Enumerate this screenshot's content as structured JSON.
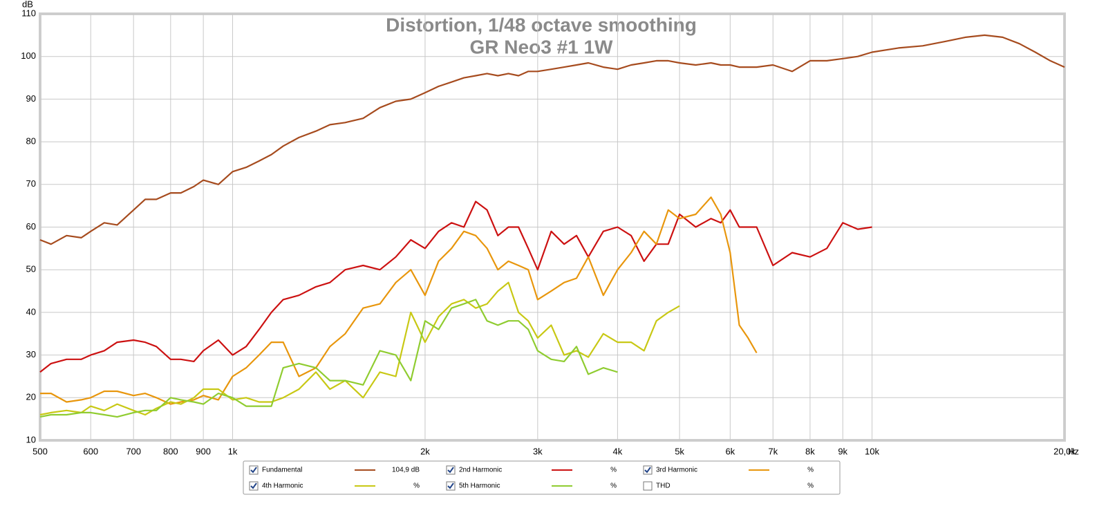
{
  "chart_data": {
    "type": "line",
    "title": "Distortion, 1/48 octave smoothing",
    "subtitle": "GR Neo3 #1 1W",
    "xlabel": "Hz",
    "ylabel": "dB",
    "log_x": true,
    "grid": true,
    "xlim": [
      500,
      20000
    ],
    "ylim": [
      10,
      110
    ],
    "xticks": [
      500,
      600,
      700,
      800,
      900,
      {
        "value": 1000,
        "label": "1k"
      },
      {
        "value": 2000,
        "label": "2k"
      },
      {
        "value": 3000,
        "label": "3k"
      },
      {
        "value": 4000,
        "label": "4k"
      },
      {
        "value": 5000,
        "label": "5k"
      },
      {
        "value": 6000,
        "label": "6k"
      },
      {
        "value": 7000,
        "label": "7k"
      },
      {
        "value": 8000,
        "label": "8k"
      },
      {
        "value": 9000,
        "label": "9k"
      },
      {
        "value": 10000,
        "label": "10k"
      },
      {
        "value": 20000,
        "label": "20,0k"
      }
    ],
    "yticks": [
      10,
      20,
      30,
      40,
      50,
      60,
      70,
      80,
      90,
      100,
      110
    ],
    "x": [
      500,
      520,
      550,
      580,
      600,
      630,
      660,
      700,
      730,
      760,
      800,
      830,
      870,
      900,
      950,
      1000,
      1050,
      1100,
      1150,
      1200,
      1270,
      1350,
      1420,
      1500,
      1600,
      1700,
      1800,
      1900,
      2000,
      2100,
      2200,
      2300,
      2400,
      2500,
      2600,
      2700,
      2800,
      2900,
      3000,
      3150,
      3300,
      3450,
      3600,
      3800,
      4000,
      4200,
      4400,
      4600,
      4800,
      5000,
      5300,
      5600,
      5800,
      6000,
      6200,
      6400,
      6600,
      7000,
      7500,
      8000,
      8500,
      9000,
      9500,
      10000,
      11000,
      12000,
      13000,
      14000,
      15000,
      16000,
      17000,
      18000,
      19000,
      20000
    ],
    "series": [
      {
        "name": "Fundamental",
        "color": "#a64b1e",
        "checked": true,
        "legend_value": "104,9 dB",
        "values": [
          57,
          56,
          58,
          57.5,
          59,
          61,
          60.5,
          64,
          66.5,
          66.5,
          68,
          68,
          69.5,
          71,
          70,
          73,
          74,
          75.5,
          77,
          79,
          81,
          82.5,
          84,
          84.5,
          85.5,
          88,
          89.5,
          90,
          91.5,
          93,
          94,
          95,
          95.5,
          96,
          95.5,
          96,
          95.5,
          96.5,
          96.5,
          97,
          97.5,
          98,
          98.5,
          97.5,
          97,
          98,
          98.5,
          99,
          99,
          98.5,
          98,
          98.5,
          98,
          98,
          97.5,
          97.5,
          97.5,
          98,
          96.5,
          99,
          99,
          99.5,
          100,
          101,
          102,
          102.5,
          103.5,
          104.5,
          105,
          104.5,
          103,
          101,
          99,
          97.5
        ]
      },
      {
        "name": "2nd Harmonic",
        "color": "#cc1111",
        "checked": true,
        "legend_value": "%",
        "values": [
          26,
          28,
          29,
          29,
          30,
          31,
          33,
          33.5,
          33,
          32,
          29,
          29,
          28.5,
          31,
          33.5,
          30,
          32,
          36,
          40,
          43,
          44,
          46,
          47,
          50,
          51,
          50,
          53,
          57,
          55,
          59,
          61,
          60,
          66,
          64,
          58,
          60,
          60,
          55,
          50,
          59,
          56,
          58,
          53,
          59,
          60,
          58,
          52,
          56,
          56,
          63,
          60,
          62,
          61,
          64,
          60,
          60,
          60,
          51,
          54,
          53,
          55,
          61,
          59.5,
          60,
          null,
          null,
          null,
          null,
          null,
          null,
          null,
          null,
          null,
          null
        ]
      },
      {
        "name": "3rd Harmonic",
        "color": "#e8960c",
        "checked": true,
        "legend_value": "%",
        "values": [
          21,
          21,
          19,
          19.5,
          20,
          21.5,
          21.5,
          20.5,
          21,
          20,
          18.5,
          19,
          19.5,
          20.5,
          19.5,
          25,
          27,
          30,
          33,
          33,
          25,
          27,
          32,
          35,
          41,
          42,
          47,
          50,
          44,
          52,
          55,
          59,
          58,
          55,
          50,
          52,
          51,
          50,
          43,
          45,
          47,
          48,
          53,
          44,
          50,
          54,
          59,
          56,
          64,
          62,
          63,
          67,
          63,
          54,
          37,
          34,
          30.5,
          null,
          null,
          null,
          null,
          null,
          null,
          null,
          null,
          null,
          null,
          null,
          null,
          null,
          null,
          null,
          null,
          null
        ]
      },
      {
        "name": "4th Harmonic",
        "color": "#c8c814",
        "checked": true,
        "legend_value": "%",
        "values": [
          16,
          16.5,
          17,
          16.5,
          18,
          17,
          18.5,
          17,
          16,
          17.5,
          19,
          18.5,
          20,
          22,
          22,
          19.5,
          20,
          19,
          19,
          20,
          22,
          26,
          22,
          24,
          20,
          26,
          25,
          40,
          33,
          39,
          42,
          43,
          41,
          42,
          45,
          47,
          40,
          38,
          34,
          37,
          30,
          31,
          29.5,
          35,
          33,
          33,
          31,
          38,
          40,
          41.5,
          null,
          null,
          null,
          null,
          null,
          null,
          null,
          null,
          null,
          null,
          null,
          null,
          null,
          null,
          null,
          null,
          null,
          null,
          null,
          null,
          null,
          null,
          null,
          null
        ]
      },
      {
        "name": "5th Harmonic",
        "color": "#8fcc30",
        "checked": true,
        "legend_value": "%",
        "values": [
          15.5,
          16,
          16,
          16.5,
          16.5,
          16,
          15.5,
          16.5,
          17,
          17,
          20,
          19.5,
          19,
          18.5,
          21,
          20,
          18,
          18,
          18,
          27,
          28,
          27,
          24,
          24,
          23,
          31,
          30,
          24,
          38,
          36,
          41,
          42,
          43,
          38,
          37,
          38,
          38,
          36,
          31,
          29,
          28.5,
          32,
          25.5,
          27,
          26,
          null,
          null,
          null,
          null,
          null,
          null,
          null,
          null,
          null,
          null,
          null,
          null,
          null,
          null,
          null,
          null,
          null,
          null,
          null,
          null,
          null,
          null,
          null,
          null,
          null,
          null,
          null,
          null,
          null
        ]
      }
    ],
    "legend_extra": {
      "name": "THD",
      "checked": false,
      "legend_value": "%"
    }
  }
}
